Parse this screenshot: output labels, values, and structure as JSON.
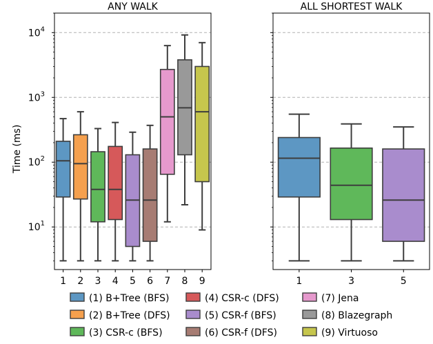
{
  "chart_data": {
    "type": "boxplot",
    "ylabel": "Time (ms)",
    "yscale": "log",
    "ylim": [
      2.2,
      20000
    ],
    "y_ticks": [
      {
        "value": 10,
        "base": "10",
        "exp": "1"
      },
      {
        "value": 100,
        "base": "10",
        "exp": "2"
      },
      {
        "value": 1000,
        "base": "10",
        "exp": "3"
      },
      {
        "value": 10000,
        "base": "10",
        "exp": "4"
      }
    ],
    "grid": "horizontal-dashed",
    "panels": [
      {
        "title": "ANY WALK",
        "boxes": [
          {
            "label": "1",
            "min": 3,
            "q1": 29,
            "median": 105,
            "q3": 210,
            "max": 470,
            "color": "#5d97c3"
          },
          {
            "label": "2",
            "min": 3,
            "q1": 27,
            "median": 95,
            "q3": 265,
            "max": 600,
            "color": "#f5a04e"
          },
          {
            "label": "3",
            "min": 3,
            "q1": 12,
            "median": 38,
            "q3": 145,
            "max": 330,
            "color": "#5fb85a"
          },
          {
            "label": "4",
            "min": 3,
            "q1": 13,
            "median": 38,
            "q3": 175,
            "max": 410,
            "color": "#d6595a"
          },
          {
            "label": "5",
            "min": 3,
            "q1": 5,
            "median": 26,
            "q3": 130,
            "max": 290,
            "color": "#a98ccd"
          },
          {
            "label": "6",
            "min": 3,
            "q1": 6,
            "median": 26,
            "q3": 160,
            "max": 370,
            "color": "#a77c73"
          },
          {
            "label": "7",
            "min": 12,
            "q1": 65,
            "median": 500,
            "q3": 2700,
            "max": 6300,
            "color": "#e699cd"
          },
          {
            "label": "8",
            "min": 22,
            "q1": 130,
            "median": 690,
            "q3": 3800,
            "max": 9200,
            "color": "#999999"
          },
          {
            "label": "9",
            "min": 9,
            "q1": 50,
            "median": 600,
            "q3": 3000,
            "max": 7000,
            "color": "#c6c64d"
          }
        ]
      },
      {
        "title": "ALL SHORTEST WALK",
        "boxes": [
          {
            "label": "1",
            "min": 3,
            "q1": 29,
            "median": 115,
            "q3": 240,
            "max": 550,
            "color": "#5d97c3"
          },
          {
            "label": "3",
            "min": 3,
            "q1": 13,
            "median": 44,
            "q3": 165,
            "max": 390,
            "color": "#5fb85a"
          },
          {
            "label": "5",
            "min": 3,
            "q1": 6,
            "median": 26,
            "q3": 160,
            "max": 350,
            "color": "#a98ccd"
          }
        ]
      }
    ],
    "legend": {
      "placement": "bottom",
      "entries": [
        {
          "label": "(1) B+Tree (BFS)",
          "color": "#5d97c3"
        },
        {
          "label": "(2) B+Tree (DFS)",
          "color": "#f5a04e"
        },
        {
          "label": "(3) CSR-c (BFS)",
          "color": "#5fb85a"
        },
        {
          "label": "(4) CSR-c (DFS)",
          "color": "#d6595a"
        },
        {
          "label": "(5) CSR-f (BFS)",
          "color": "#a98ccd"
        },
        {
          "label": "(6) CSR-f (DFS)",
          "color": "#a77c73"
        },
        {
          "label": "(7) Jena",
          "color": "#e699cd"
        },
        {
          "label": "(8) Blazegraph",
          "color": "#999999"
        },
        {
          "label": "(9) Virtuoso",
          "color": "#c6c64d"
        }
      ]
    }
  }
}
